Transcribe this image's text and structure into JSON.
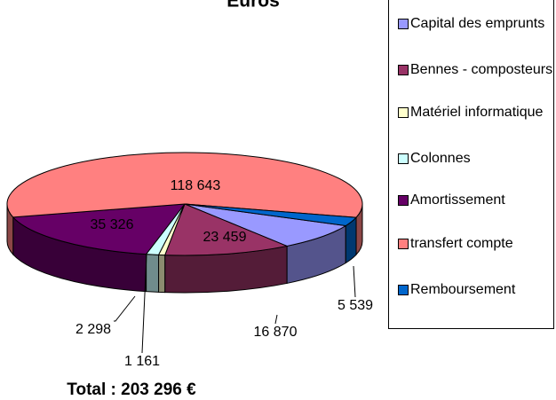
{
  "chart_data": {
    "type": "pie3d",
    "title": "Euros",
    "categories": [
      "Capital des emprunts",
      "Bennes - composteurs",
      "Matériel informatique",
      "Colonnes",
      "Amortissement",
      "transfert compte",
      "Remboursement"
    ],
    "values": [
      16870,
      23459,
      1161,
      2298,
      35326,
      118643,
      5539
    ],
    "value_labels": [
      "16 870",
      "23 459",
      "1 161",
      "2 298",
      "35 326",
      "118 643",
      "5 539"
    ],
    "colors": [
      "#9999ff",
      "#993366",
      "#ffffcc",
      "#ccffff",
      "#660066",
      "#ff8080",
      "#0066cc"
    ],
    "annotation": "Total :  203 296 €",
    "legend": "right"
  }
}
